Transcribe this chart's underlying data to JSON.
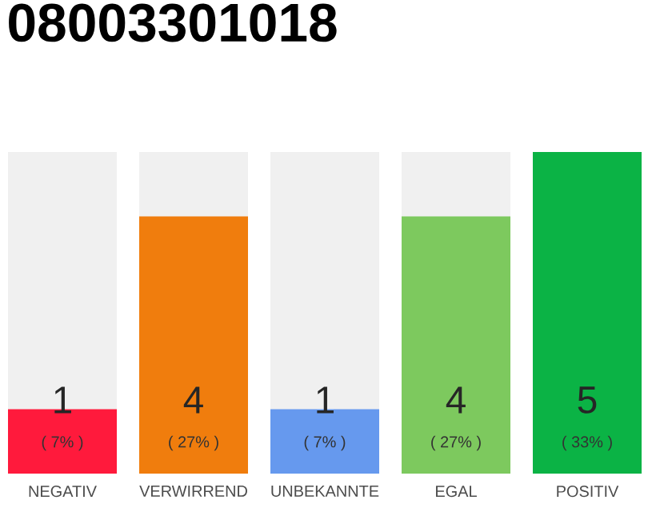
{
  "chart_data": {
    "type": "bar",
    "title": "08003301018",
    "categories": [
      "NEGATIV",
      "VERWIRREND",
      "UNBEKANNTE",
      "EGAL",
      "POSITIV"
    ],
    "values": [
      1,
      4,
      1,
      4,
      5
    ],
    "colors": [
      "#ff1a3c",
      "#f07d0d",
      "#6699ee",
      "#7dc95e",
      "#0bb345"
    ],
    "data_labels": true,
    "annotations": [
      "( 7% )",
      "( 27% )",
      "( 7% )",
      "( 27% )",
      "( 33% )"
    ]
  }
}
